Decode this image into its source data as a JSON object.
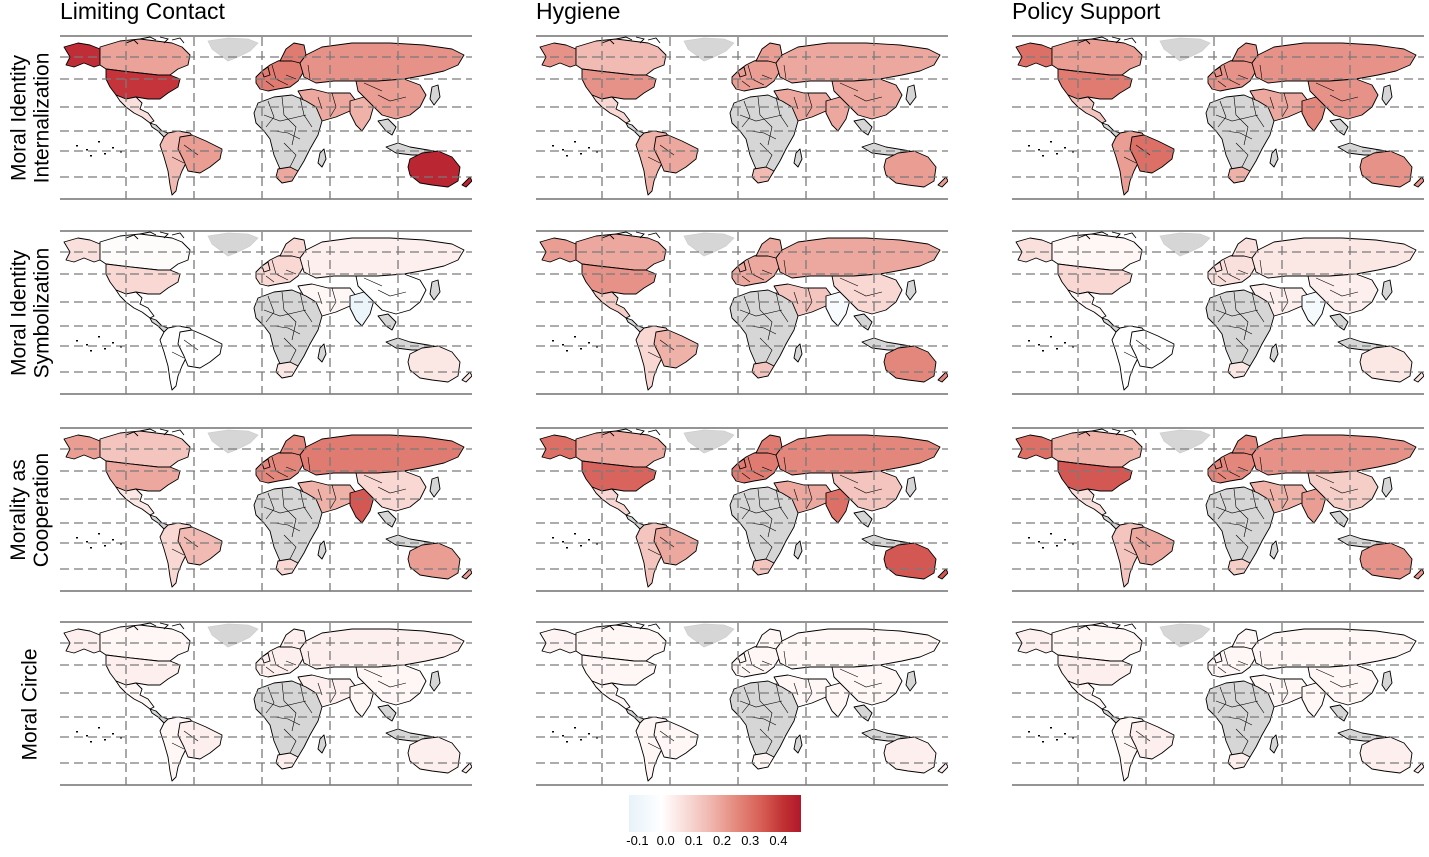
{
  "columns": [
    {
      "title": "Limiting Contact"
    },
    {
      "title": "Hygiene"
    },
    {
      "title": "Policy Support"
    }
  ],
  "rows": [
    {
      "title_lines": [
        "Moral Identity",
        "Internalization"
      ]
    },
    {
      "title_lines": [
        "Moral Identity",
        "Symbolization"
      ]
    },
    {
      "title_lines": [
        "Morality as",
        "Cooperation"
      ]
    },
    {
      "title_lines": [
        "Moral Circle"
      ]
    }
  ],
  "legend": {
    "tick_labels": [
      "-0.1",
      "0.0",
      "0.1",
      "0.2",
      "0.3",
      "0.4"
    ],
    "tick_values": [
      -0.1,
      0.0,
      0.1,
      0.2,
      0.3,
      0.4
    ],
    "range": [
      -0.13,
      0.48
    ],
    "colors": {
      "low": "#deeef7",
      "mid": "#ffffff",
      "high": "#b2182b",
      "no_data": "#d6d6d6"
    }
  },
  "map_values": {
    "region_order": [
      "usa",
      "canada",
      "alaska",
      "mexico",
      "south_america",
      "brazil",
      "europe",
      "russia",
      "middle_east",
      "india",
      "east_asia",
      "south_africa",
      "australia"
    ],
    "grid": [
      [
        [
          0.4,
          0.21,
          0.42,
          0.08,
          0.16,
          0.22,
          0.28,
          0.24,
          0.2,
          0.18,
          0.22,
          0.2,
          0.44
        ],
        [
          0.24,
          0.16,
          0.24,
          0.1,
          0.18,
          0.2,
          0.22,
          0.2,
          0.2,
          0.2,
          0.2,
          0.16,
          0.22
        ],
        [
          0.28,
          0.22,
          0.3,
          0.14,
          0.22,
          0.3,
          0.24,
          0.24,
          0.2,
          0.26,
          0.24,
          0.18,
          0.24
        ]
      ],
      [
        [
          0.1,
          0.01,
          0.08,
          0.0,
          0.0,
          0.0,
          0.1,
          0.04,
          0.02,
          -0.08,
          0.0,
          0.06,
          0.06
        ],
        [
          0.24,
          0.2,
          0.22,
          0.12,
          0.1,
          0.18,
          0.2,
          0.2,
          0.14,
          -0.03,
          0.1,
          0.14,
          0.26
        ],
        [
          0.1,
          0.02,
          0.08,
          0.02,
          0.0,
          0.0,
          0.08,
          0.06,
          0.04,
          -0.04,
          0.04,
          0.06,
          0.06
        ]
      ],
      [
        [
          0.2,
          0.14,
          0.22,
          0.06,
          0.1,
          0.16,
          0.26,
          0.28,
          0.18,
          0.34,
          0.1,
          0.1,
          0.22
        ],
        [
          0.32,
          0.2,
          0.3,
          0.1,
          0.14,
          0.2,
          0.28,
          0.26,
          0.2,
          0.3,
          0.14,
          0.14,
          0.34
        ],
        [
          0.34,
          0.18,
          0.3,
          0.08,
          0.14,
          0.2,
          0.26,
          0.24,
          0.18,
          0.22,
          0.12,
          0.12,
          0.24
        ]
      ],
      [
        [
          0.04,
          0.02,
          0.04,
          0.02,
          0.02,
          0.04,
          0.04,
          0.04,
          0.04,
          0.02,
          0.02,
          0.04,
          0.04
        ],
        [
          0.02,
          0.02,
          0.03,
          0.02,
          0.02,
          0.02,
          0.02,
          0.02,
          0.02,
          0.02,
          0.02,
          0.02,
          0.04
        ],
        [
          0.04,
          0.02,
          0.04,
          0.02,
          0.02,
          0.04,
          0.02,
          0.02,
          0.02,
          0.02,
          0.02,
          0.04,
          0.04
        ]
      ]
    ]
  }
}
